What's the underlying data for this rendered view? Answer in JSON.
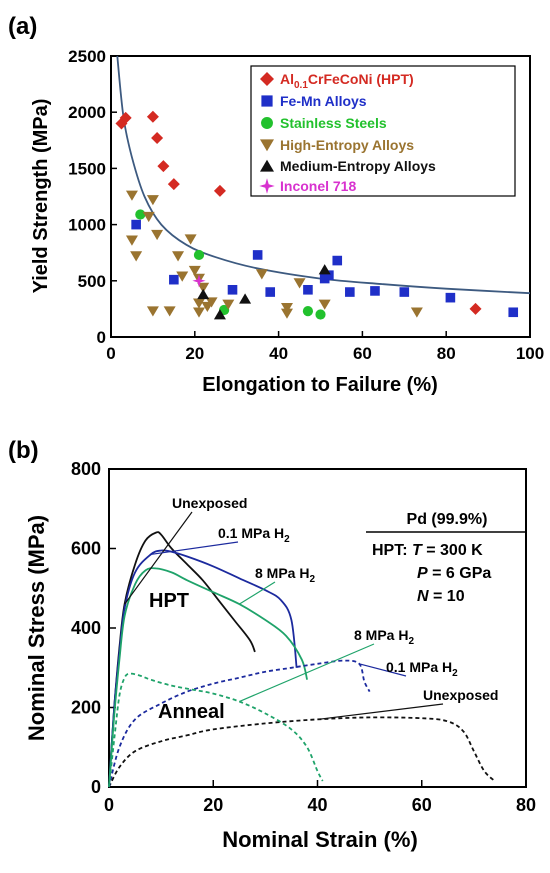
{
  "panel_labels": [
    "(a)",
    "(b)"
  ],
  "chart_data": [
    {
      "type": "scatter",
      "panel": "(a)",
      "xlabel": "Elongation to Failure (%)",
      "ylabel": "Yield Strength (MPa)",
      "xlim": [
        0,
        100
      ],
      "ylim": [
        0,
        2500
      ],
      "xticks": [
        "0",
        "20",
        "40",
        "60",
        "80",
        "100"
      ],
      "yticks": [
        "0",
        "500",
        "1000",
        "1500",
        "2000",
        "2500"
      ],
      "grid": false,
      "legend_placement": "top-right",
      "series": [
        {
          "name": "Al0.1CrFeCoNi (HPT)",
          "name_parts": {
            "base": "Al",
            "sub": "0.1",
            "rest": "CrFeCoNi (HPT)"
          },
          "marker": "diamond",
          "color": "#d42a22",
          "points": [
            [
              2.5,
              1900
            ],
            [
              3.5,
              1950
            ],
            [
              10,
              1960
            ],
            [
              11,
              1770
            ],
            [
              12.5,
              1520
            ],
            [
              15,
              1360
            ],
            [
              26,
              1300
            ],
            [
              87,
              250
            ]
          ]
        },
        {
          "name": "Fe-Mn Alloys",
          "marker": "square",
          "color": "#1f2fc8",
          "points": [
            [
              6,
              1000
            ],
            [
              15,
              510
            ],
            [
              29,
              420
            ],
            [
              35,
              730
            ],
            [
              38,
              400
            ],
            [
              47,
              420
            ],
            [
              51,
              520
            ],
            [
              52,
              550
            ],
            [
              54,
              680
            ],
            [
              57,
              400
            ],
            [
              63,
              410
            ],
            [
              70,
              400
            ],
            [
              81,
              350
            ],
            [
              96,
              220
            ]
          ]
        },
        {
          "name": "Stainless Steels",
          "marker": "circle",
          "color": "#22c12d",
          "points": [
            [
              7,
              1090
            ],
            [
              21,
              730
            ],
            [
              27,
              240
            ],
            [
              47,
              230
            ],
            [
              50,
              200
            ]
          ]
        },
        {
          "name": "High-Entropy Alloys",
          "marker": "triangle-down",
          "color": "#9a7430",
          "points": [
            [
              5,
              1260
            ],
            [
              5,
              860
            ],
            [
              6,
              720
            ],
            [
              9,
              1070
            ],
            [
              10,
              1220
            ],
            [
              10,
              230
            ],
            [
              11,
              910
            ],
            [
              14,
              230
            ],
            [
              16,
              720
            ],
            [
              17,
              540
            ],
            [
              19,
              870
            ],
            [
              20,
              590
            ],
            [
              21,
              520
            ],
            [
              21,
              300
            ],
            [
              21,
              220
            ],
            [
              22,
              440
            ],
            [
              23,
              270
            ],
            [
              24,
              310
            ],
            [
              28,
              290
            ],
            [
              36,
              560
            ],
            [
              42,
              260
            ],
            [
              42,
              210
            ],
            [
              45,
              480
            ],
            [
              51,
              290
            ],
            [
              73,
              220
            ]
          ]
        },
        {
          "name": "Medium-Entropy Alloys",
          "marker": "triangle-up",
          "color": "#111111",
          "points": [
            [
              22,
              380
            ],
            [
              26,
              200
            ],
            [
              32,
              340
            ],
            [
              51,
              600
            ]
          ]
        },
        {
          "name": "Inconel 718",
          "marker": "star",
          "color": "#d832cf",
          "points": [
            [
              21,
              500
            ]
          ]
        }
      ],
      "fit_curve": {
        "color": "#3d5a80",
        "points": [
          [
            1.5,
            2500
          ],
          [
            3,
            1950
          ],
          [
            5,
            1600
          ],
          [
            8,
            1250
          ],
          [
            12,
            1000
          ],
          [
            18,
            820
          ],
          [
            25,
            710
          ],
          [
            35,
            610
          ],
          [
            50,
            520
          ],
          [
            65,
            470
          ],
          [
            80,
            430
          ],
          [
            100,
            390
          ]
        ]
      }
    },
    {
      "type": "line",
      "panel": "(b)",
      "xlabel": "Nominal Strain (%)",
      "ylabel": "Nominal Stress (MPa)",
      "xlim": [
        0,
        80
      ],
      "ylim": [
        0,
        800
      ],
      "xticks": [
        "0",
        "20",
        "40",
        "60",
        "80"
      ],
      "yticks": [
        "0",
        "200",
        "400",
        "600",
        "800"
      ],
      "grid": false,
      "info_box": {
        "title": "Pd (99.9%)",
        "line1_prefix": "HPT: ",
        "line1_var": "T",
        "line1_value": " = 300 K",
        "line2_var": "P",
        "line2_value": " = 6 GPa",
        "line3_var": "N",
        "line3_value": " = 10"
      },
      "group_labels": [
        "HPT",
        "Anneal"
      ],
      "series": [
        {
          "name": "Unexposed",
          "group": "HPT",
          "color": "#111111",
          "style": "solid",
          "x": [
            0,
            1,
            2,
            3,
            5,
            7,
            9,
            10,
            12,
            15,
            18,
            21,
            24,
            27,
            28
          ],
          "y": [
            0,
            200,
            350,
            460,
            560,
            620,
            640,
            635,
            600,
            560,
            520,
            470,
            420,
            370,
            340
          ]
        },
        {
          "name": "0.1 MPa H2",
          "group": "HPT",
          "color": "#1c2a9e",
          "style": "solid",
          "x": [
            0,
            1,
            2,
            3,
            5,
            8,
            10,
            12,
            15,
            20,
            25,
            30,
            33,
            35,
            36
          ],
          "y": [
            0,
            200,
            340,
            450,
            540,
            585,
            595,
            592,
            580,
            555,
            525,
            495,
            470,
            420,
            300
          ]
        },
        {
          "name": "8 MPa H2",
          "group": "HPT",
          "color": "#1fa36a",
          "style": "solid",
          "x": [
            0,
            1,
            2,
            3,
            5,
            7,
            9,
            12,
            15,
            20,
            25,
            30,
            34,
            37,
            38
          ],
          "y": [
            0,
            180,
            320,
            430,
            510,
            545,
            550,
            540,
            520,
            490,
            460,
            420,
            380,
            320,
            270
          ]
        },
        {
          "name": "Unexposed",
          "group": "Anneal",
          "color": "#111111",
          "style": "dashed",
          "x": [
            0,
            2,
            5,
            10,
            15,
            20,
            30,
            40,
            50,
            60,
            65,
            68,
            70,
            72,
            74
          ],
          "y": [
            0,
            50,
            90,
            115,
            130,
            145,
            160,
            170,
            175,
            173,
            165,
            140,
            90,
            40,
            15
          ]
        },
        {
          "name": "0.1 MPa H2",
          "group": "Anneal",
          "color": "#1c2a9e",
          "style": "dashed",
          "x": [
            0,
            2,
            5,
            10,
            15,
            20,
            25,
            30,
            35,
            40,
            45,
            48,
            49,
            50
          ],
          "y": [
            0,
            100,
            170,
            210,
            240,
            260,
            275,
            290,
            300,
            310,
            318,
            310,
            265,
            240
          ]
        },
        {
          "name": "8 MPa H2",
          "group": "Anneal",
          "color": "#1fa36a",
          "style": "dashed",
          "x": [
            0,
            1,
            2,
            3,
            4,
            6,
            8,
            12,
            16,
            20,
            25,
            30,
            35,
            38,
            40,
            41
          ],
          "y": [
            0,
            120,
            230,
            275,
            285,
            280,
            270,
            255,
            245,
            235,
            215,
            185,
            145,
            100,
            40,
            15
          ]
        }
      ],
      "annotations": [
        {
          "text": "Unexposed",
          "series_index": 0
        },
        {
          "prefix": "0.1 MPa H",
          "sub": "2",
          "series_index": 1
        },
        {
          "prefix": "8 MPa H",
          "sub": "2",
          "series_index": 2
        },
        {
          "prefix": "8 MPa H",
          "sub": "2",
          "series_index": 5
        },
        {
          "prefix": "0.1 MPa H",
          "sub": "2",
          "series_index": 4
        },
        {
          "text": "Unexposed",
          "series_index": 3
        }
      ]
    }
  ]
}
